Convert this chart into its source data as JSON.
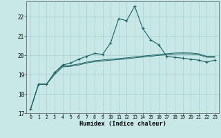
{
  "xlabel": "Humidex (Indice chaleur)",
  "background_color": "#c8e8e8",
  "grid_color": "#a8d0d0",
  "line_color": "#1a6060",
  "x_values": [
    0,
    1,
    2,
    3,
    4,
    5,
    6,
    7,
    8,
    9,
    10,
    11,
    12,
    13,
    14,
    15,
    16,
    17,
    18,
    19,
    20,
    21,
    22,
    23
  ],
  "line_peak": [
    17.2,
    18.5,
    18.5,
    19.1,
    19.5,
    19.6,
    19.8,
    19.95,
    20.1,
    20.05,
    20.65,
    21.9,
    21.8,
    22.55,
    21.4,
    20.8,
    20.55,
    19.95,
    19.9,
    19.85,
    19.8,
    19.75,
    19.65,
    19.75
  ],
  "line_mid": [
    17.2,
    18.5,
    18.5,
    19.1,
    19.45,
    19.48,
    19.55,
    19.65,
    19.72,
    19.76,
    19.8,
    19.83,
    19.87,
    19.92,
    19.96,
    20.0,
    20.05,
    20.08,
    20.12,
    20.13,
    20.12,
    20.08,
    19.95,
    19.95
  ],
  "line_low": [
    17.2,
    18.5,
    18.5,
    19.0,
    19.4,
    19.43,
    19.5,
    19.6,
    19.67,
    19.71,
    19.75,
    19.78,
    19.82,
    19.87,
    19.91,
    19.95,
    20.0,
    20.03,
    20.07,
    20.08,
    20.07,
    20.03,
    19.9,
    19.9
  ],
  "ylim": [
    17.0,
    22.8
  ],
  "yticks": [
    17,
    18,
    19,
    20,
    21,
    22
  ],
  "xticks": [
    0,
    1,
    2,
    3,
    4,
    5,
    6,
    7,
    8,
    9,
    10,
    11,
    12,
    13,
    14,
    15,
    16,
    17,
    18,
    19,
    20,
    21,
    22,
    23
  ]
}
